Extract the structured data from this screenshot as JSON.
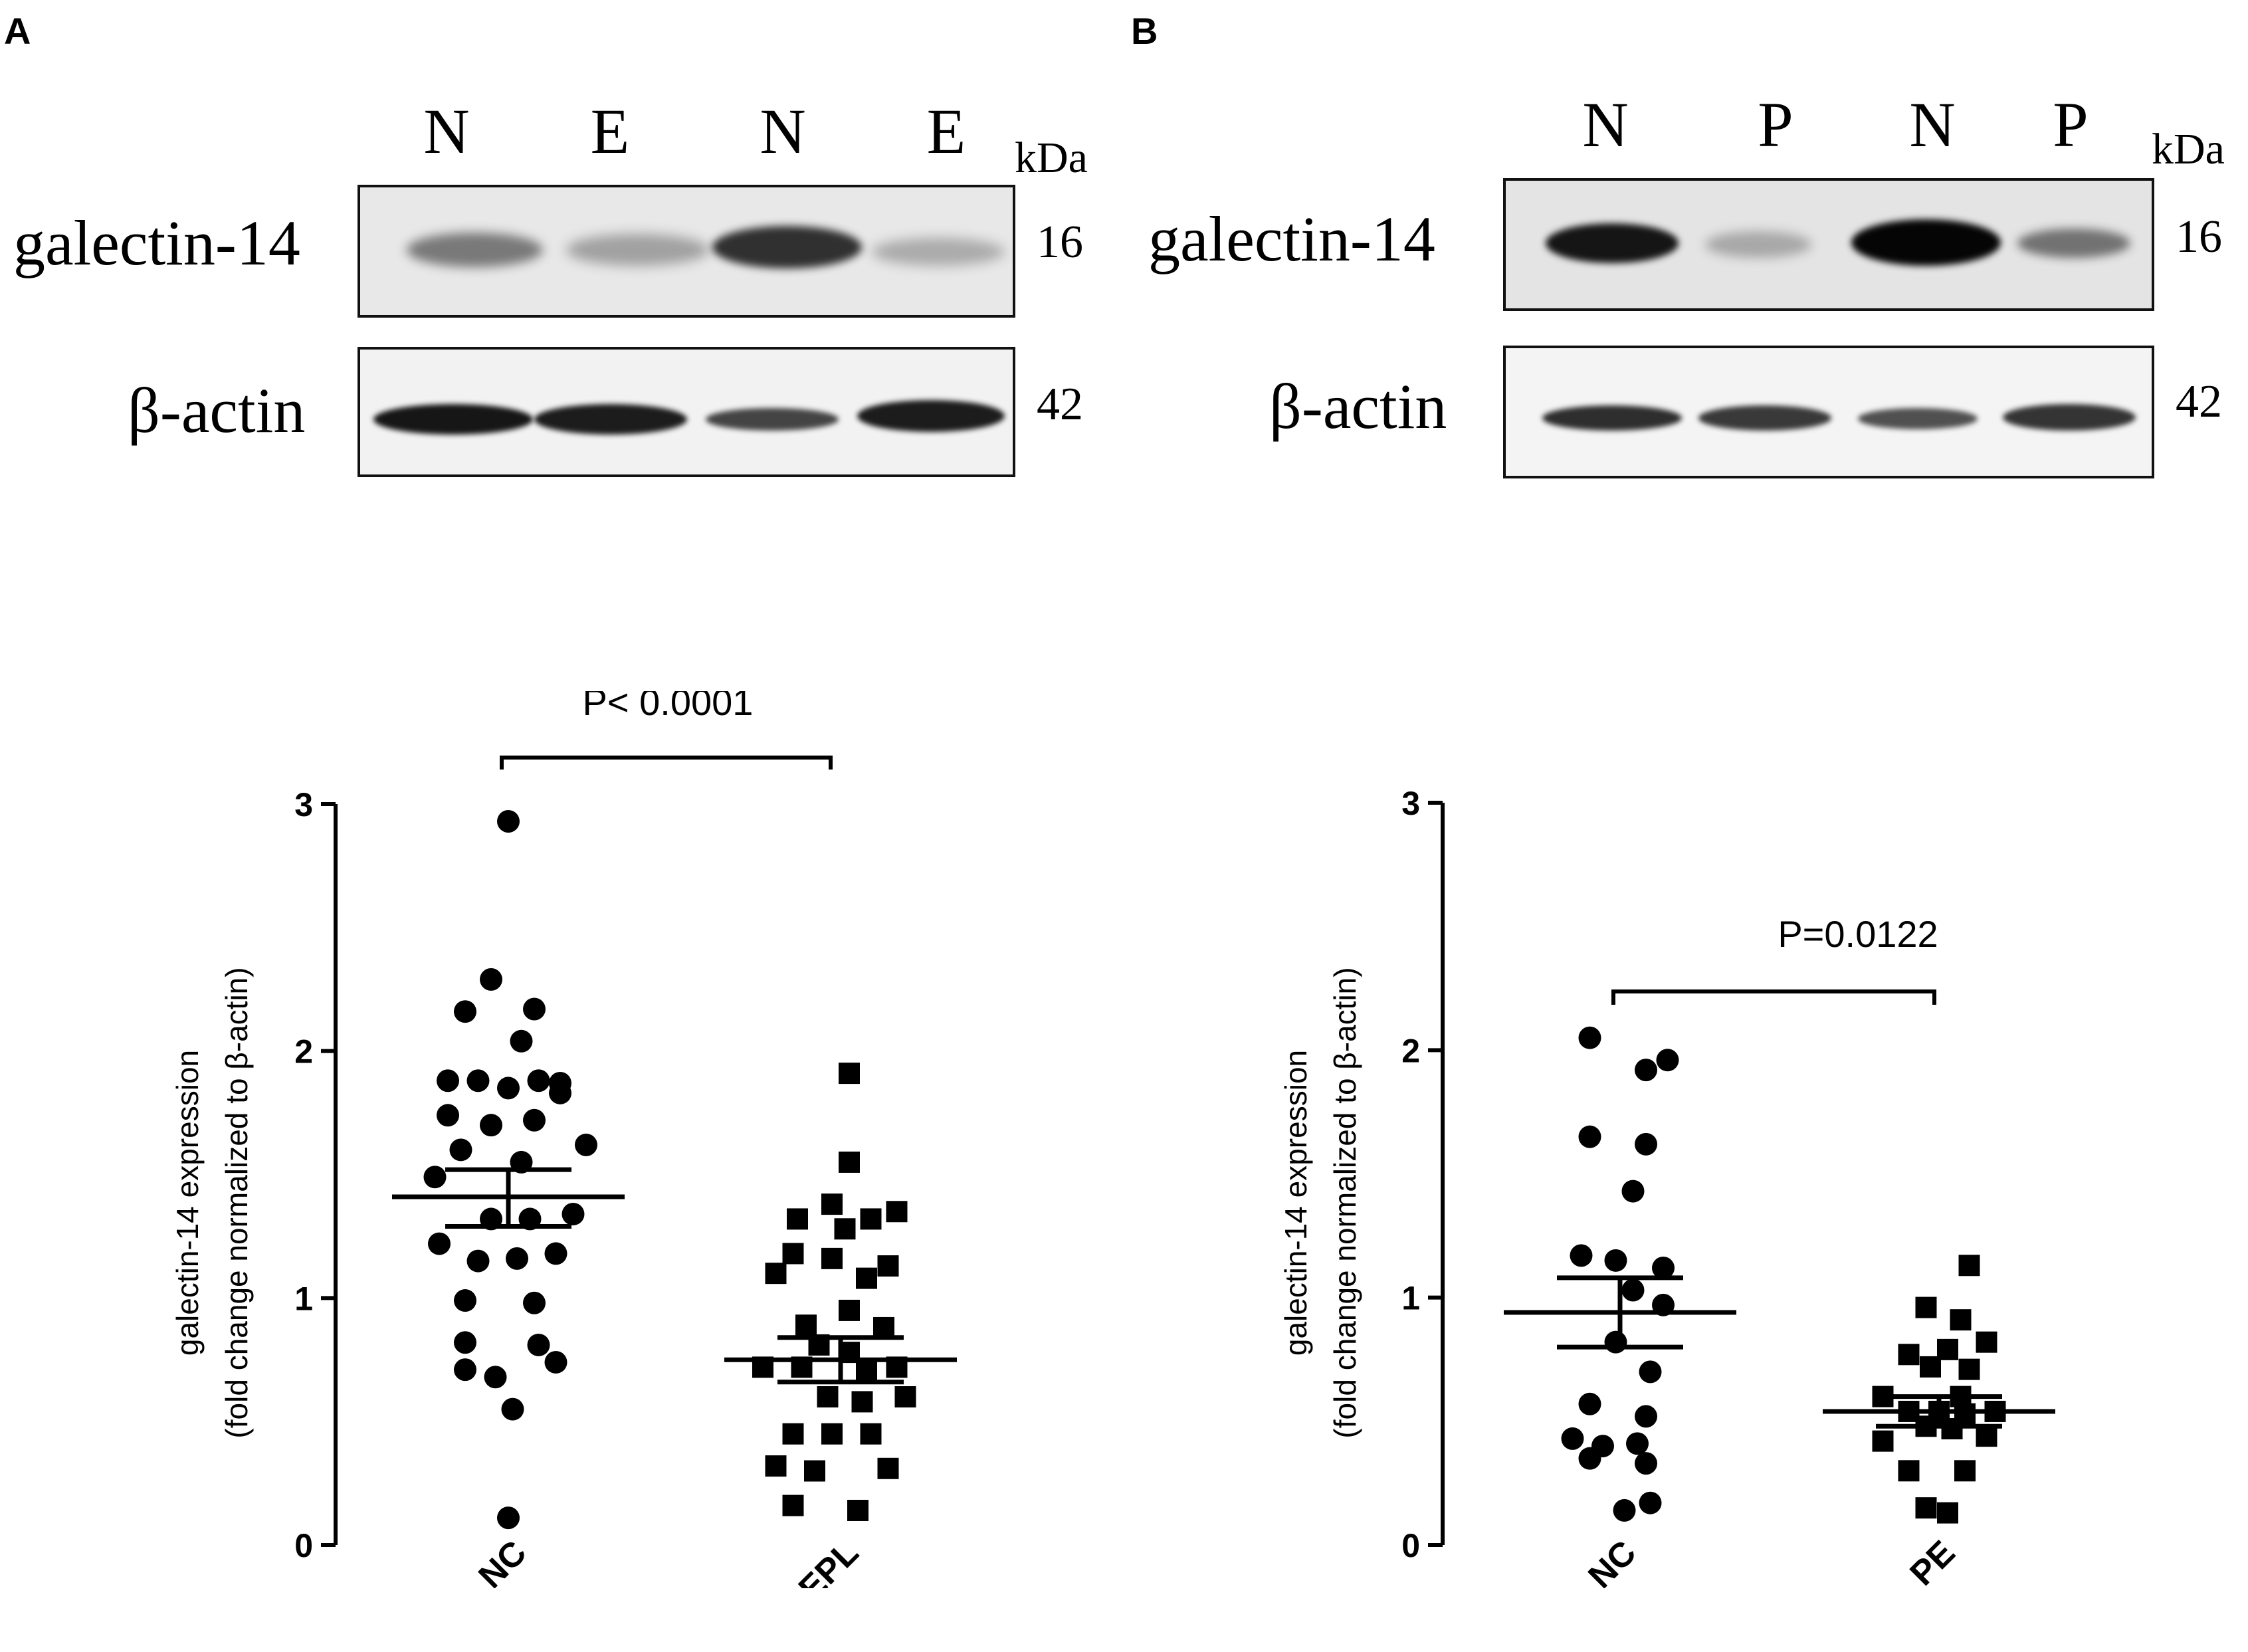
{
  "panels": [
    {
      "letter": "A",
      "western_blot": {
        "lanes": [
          "N",
          "E",
          "N",
          "E"
        ],
        "unit_label": "kDa",
        "rows": [
          {
            "protein": "galectin-14",
            "mw": "16"
          },
          {
            "protein": "β-actin",
            "mw": "42"
          }
        ],
        "band_intensity": {
          "galectin-14": [
            0.55,
            0.35,
            0.85,
            0.3
          ],
          "β-actin": [
            0.95,
            0.92,
            0.75,
            0.92
          ]
        }
      }
    },
    {
      "letter": "B",
      "western_blot": {
        "lanes": [
          "N",
          "P",
          "N",
          "P"
        ],
        "unit_label": "kDa",
        "rows": [
          {
            "protein": "galectin-14",
            "mw": "16"
          },
          {
            "protein": "β-actin",
            "mw": "42"
          }
        ],
        "band_intensity": {
          "galectin-14": [
            0.95,
            0.3,
            1.0,
            0.55
          ],
          "β-actin": [
            0.85,
            0.8,
            0.7,
            0.82
          ]
        }
      }
    }
  ],
  "chart_data": [
    {
      "type": "scatter",
      "panel": "A",
      "ylabel_line1": "galectin-14 expression",
      "ylabel_line2": "(fold change normalized to β-actin)",
      "ylim": [
        0,
        3
      ],
      "yticks": [
        "0",
        "1",
        "2",
        "3"
      ],
      "categories": [
        "NC",
        "EPL"
      ],
      "significance": "P< 0.0001",
      "series": [
        {
          "category": "NC",
          "marker": "circle",
          "mean": 1.41,
          "sem_low": 1.29,
          "sem_high": 1.52,
          "points": [
            {
              "jitter": 0,
              "y": 2.93
            },
            {
              "jitter": -0.2,
              "y": 2.29
            },
            {
              "jitter": -0.5,
              "y": 2.16
            },
            {
              "jitter": 0.3,
              "y": 2.17
            },
            {
              "jitter": 0.15,
              "y": 2.04
            },
            {
              "jitter": -0.7,
              "y": 1.88
            },
            {
              "jitter": -0.35,
              "y": 1.88
            },
            {
              "jitter": 0.0,
              "y": 1.85
            },
            {
              "jitter": 0.35,
              "y": 1.88
            },
            {
              "jitter": 0.6,
              "y": 1.87
            },
            {
              "jitter": 0.6,
              "y": 1.83
            },
            {
              "jitter": -0.7,
              "y": 1.74
            },
            {
              "jitter": -0.2,
              "y": 1.7
            },
            {
              "jitter": 0.3,
              "y": 1.72
            },
            {
              "jitter": -0.55,
              "y": 1.6
            },
            {
              "jitter": 0.15,
              "y": 1.55
            },
            {
              "jitter": 0.9,
              "y": 1.62
            },
            {
              "jitter": -0.85,
              "y": 1.49
            },
            {
              "jitter": -0.2,
              "y": 1.32
            },
            {
              "jitter": 0.25,
              "y": 1.32
            },
            {
              "jitter": 0.75,
              "y": 1.34
            },
            {
              "jitter": -0.8,
              "y": 1.22
            },
            {
              "jitter": -0.35,
              "y": 1.15
            },
            {
              "jitter": 0.1,
              "y": 1.16
            },
            {
              "jitter": 0.55,
              "y": 1.18
            },
            {
              "jitter": -0.5,
              "y": 0.99
            },
            {
              "jitter": 0.3,
              "y": 0.98
            },
            {
              "jitter": -0.5,
              "y": 0.82
            },
            {
              "jitter": 0.35,
              "y": 0.81
            },
            {
              "jitter": -0.5,
              "y": 0.71
            },
            {
              "jitter": -0.15,
              "y": 0.68
            },
            {
              "jitter": 0.55,
              "y": 0.74
            },
            {
              "jitter": 0.05,
              "y": 0.55
            },
            {
              "jitter": 0.0,
              "y": 0.11
            }
          ]
        },
        {
          "category": "EPL",
          "marker": "square",
          "mean": 0.75,
          "sem_low": 0.66,
          "sem_high": 0.84,
          "points": [
            {
              "jitter": 0.1,
              "y": 1.91
            },
            {
              "jitter": 0.1,
              "y": 1.55
            },
            {
              "jitter": -0.1,
              "y": 1.38
            },
            {
              "jitter": 0.65,
              "y": 1.35
            },
            {
              "jitter": -0.5,
              "y": 1.32
            },
            {
              "jitter": 0.35,
              "y": 1.32
            },
            {
              "jitter": 0.05,
              "y": 1.28
            },
            {
              "jitter": -0.55,
              "y": 1.18
            },
            {
              "jitter": -0.1,
              "y": 1.16
            },
            {
              "jitter": 0.55,
              "y": 1.13
            },
            {
              "jitter": -0.75,
              "y": 1.1
            },
            {
              "jitter": 0.3,
              "y": 1.08
            },
            {
              "jitter": 0.1,
              "y": 0.95
            },
            {
              "jitter": -0.4,
              "y": 0.89
            },
            {
              "jitter": 0.5,
              "y": 0.88
            },
            {
              "jitter": -0.25,
              "y": 0.81
            },
            {
              "jitter": 0.1,
              "y": 0.78
            },
            {
              "jitter": -0.9,
              "y": 0.72
            },
            {
              "jitter": -0.45,
              "y": 0.72
            },
            {
              "jitter": 0.3,
              "y": 0.7
            },
            {
              "jitter": 0.65,
              "y": 0.72
            },
            {
              "jitter": -0.15,
              "y": 0.6
            },
            {
              "jitter": 0.25,
              "y": 0.58
            },
            {
              "jitter": 0.75,
              "y": 0.6
            },
            {
              "jitter": -0.55,
              "y": 0.45
            },
            {
              "jitter": -0.1,
              "y": 0.45
            },
            {
              "jitter": 0.35,
              "y": 0.45
            },
            {
              "jitter": -0.75,
              "y": 0.32
            },
            {
              "jitter": -0.3,
              "y": 0.3
            },
            {
              "jitter": 0.55,
              "y": 0.31
            },
            {
              "jitter": -0.55,
              "y": 0.16
            },
            {
              "jitter": 0.2,
              "y": 0.14
            }
          ]
        }
      ]
    },
    {
      "type": "scatter",
      "panel": "B",
      "ylabel_line1": "galectin-14 expression",
      "ylabel_line2": "(fold change normalized to β-actin)",
      "ylim": [
        0,
        3
      ],
      "yticks": [
        "0",
        "1",
        "2",
        "3"
      ],
      "categories": [
        "NC",
        "PE"
      ],
      "significance": "P=0.0122",
      "series": [
        {
          "category": "NC",
          "marker": "circle",
          "mean": 0.94,
          "sem_low": 0.8,
          "sem_high": 1.08,
          "points": [
            {
              "jitter": -0.35,
              "y": 2.05
            },
            {
              "jitter": 0.3,
              "y": 1.92
            },
            {
              "jitter": 0.55,
              "y": 1.96
            },
            {
              "jitter": -0.35,
              "y": 1.65
            },
            {
              "jitter": 0.3,
              "y": 1.62
            },
            {
              "jitter": 0.15,
              "y": 1.43
            },
            {
              "jitter": -0.45,
              "y": 1.17
            },
            {
              "jitter": -0.05,
              "y": 1.15
            },
            {
              "jitter": 0.5,
              "y": 1.12
            },
            {
              "jitter": 0.15,
              "y": 1.03
            },
            {
              "jitter": 0.5,
              "y": 0.97
            },
            {
              "jitter": -0.05,
              "y": 0.82
            },
            {
              "jitter": 0.35,
              "y": 0.7
            },
            {
              "jitter": -0.35,
              "y": 0.57
            },
            {
              "jitter": 0.3,
              "y": 0.52
            },
            {
              "jitter": -0.55,
              "y": 0.43
            },
            {
              "jitter": -0.2,
              "y": 0.4
            },
            {
              "jitter": 0.2,
              "y": 0.41
            },
            {
              "jitter": -0.35,
              "y": 0.35
            },
            {
              "jitter": 0.3,
              "y": 0.33
            },
            {
              "jitter": 0.05,
              "y": 0.14
            },
            {
              "jitter": 0.35,
              "y": 0.17
            }
          ]
        },
        {
          "category": "PE",
          "marker": "square",
          "mean": 0.54,
          "sem_low": 0.48,
          "sem_high": 0.6,
          "points": [
            {
              "jitter": 0.35,
              "y": 1.13
            },
            {
              "jitter": -0.15,
              "y": 0.96
            },
            {
              "jitter": 0.25,
              "y": 0.91
            },
            {
              "jitter": 0.55,
              "y": 0.82
            },
            {
              "jitter": -0.35,
              "y": 0.77
            },
            {
              "jitter": 0.1,
              "y": 0.79
            },
            {
              "jitter": -0.1,
              "y": 0.72
            },
            {
              "jitter": 0.35,
              "y": 0.71
            },
            {
              "jitter": -0.65,
              "y": 0.6
            },
            {
              "jitter": 0.25,
              "y": 0.6
            },
            {
              "jitter": -0.35,
              "y": 0.54
            },
            {
              "jitter": 0.0,
              "y": 0.54
            },
            {
              "jitter": 0.3,
              "y": 0.53
            },
            {
              "jitter": 0.65,
              "y": 0.54
            },
            {
              "jitter": -0.15,
              "y": 0.48
            },
            {
              "jitter": 0.15,
              "y": 0.47
            },
            {
              "jitter": -0.65,
              "y": 0.42
            },
            {
              "jitter": 0.55,
              "y": 0.44
            },
            {
              "jitter": -0.35,
              "y": 0.3
            },
            {
              "jitter": 0.3,
              "y": 0.3
            },
            {
              "jitter": -0.15,
              "y": 0.15
            },
            {
              "jitter": 0.1,
              "y": 0.13
            }
          ]
        }
      ]
    }
  ]
}
